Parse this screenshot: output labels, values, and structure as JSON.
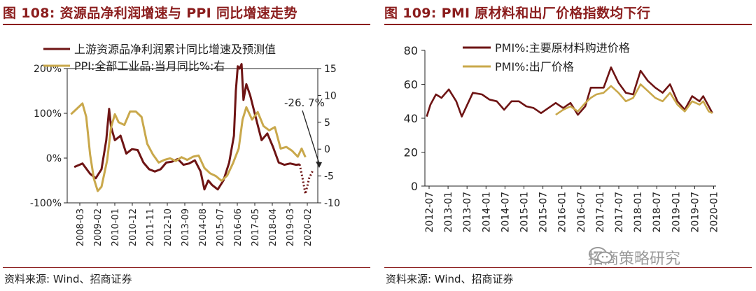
{
  "colors": {
    "dark": "#6e1414",
    "gold": "#c9a84b",
    "title": "#8b1d1d"
  },
  "left": {
    "title": "图 108: 资源品净利润增速与 PPI 同比增速走势",
    "source": "资料来源: Wind、招商证券",
    "chart_data": {
      "type": "line",
      "xtick_labels": [
        "2008-03",
        "2009-02",
        "2010-01",
        "2010-12",
        "2011-11",
        "2012-10",
        "2013-09",
        "2014-08",
        "2015-07",
        "2016-06",
        "2017-05",
        "2018-04",
        "2019-03",
        "2020-02"
      ],
      "y_left": {
        "range": [
          -100,
          200
        ],
        "ticks": [
          -100,
          0,
          100,
          200
        ],
        "tick_labels": [
          "-100%",
          "0%",
          "100%",
          "200%"
        ]
      },
      "y_right": {
        "range": [
          -10,
          15
        ],
        "ticks": [
          -10,
          -5,
          0,
          5,
          10,
          15
        ],
        "tick_labels": [
          "-10",
          "-5",
          "0",
          "5",
          "10",
          "15"
        ]
      },
      "annotation": "-26. 7%",
      "series": [
        {
          "name": "上游资源品净利润累计同比增速及预测值",
          "axis": "left",
          "color": "#6e1414",
          "x": [
            2008.17,
            2008.6,
            2009.0,
            2009.3,
            2009.6,
            2009.85,
            2010.0,
            2010.1,
            2010.3,
            2010.6,
            2010.9,
            2011.2,
            2011.5,
            2011.8,
            2012.1,
            2012.4,
            2012.7,
            2013.0,
            2013.3,
            2013.6,
            2013.9,
            2014.2,
            2014.5,
            2014.8,
            2015.0,
            2015.2,
            2015.4,
            2015.7,
            2016.0,
            2016.3,
            2016.55,
            2016.65,
            2016.75,
            2016.85,
            2016.95,
            2017.05,
            2017.2,
            2017.4,
            2017.7,
            2018.0,
            2018.3,
            2018.6,
            2018.9,
            2019.2,
            2019.5,
            2019.8,
            2020.0
          ],
          "y": [
            -20,
            -12,
            -35,
            -45,
            -25,
            40,
            110,
            70,
            40,
            50,
            10,
            20,
            18,
            -10,
            -25,
            -30,
            -25,
            -10,
            -8,
            -2,
            -15,
            -12,
            -5,
            -30,
            -70,
            -50,
            -60,
            -70,
            -50,
            -10,
            50,
            150,
            205,
            200,
            210,
            130,
            165,
            140,
            90,
            40,
            55,
            25,
            -10,
            -15,
            -12,
            -15,
            -14
          ]
        },
        {
          "name": "预测值",
          "axis": "left",
          "color": "#6e1414",
          "dotted": true,
          "x": [
            2020.0,
            2020.15,
            2020.3,
            2020.5,
            2020.7
          ],
          "y": [
            -14,
            -45,
            -80,
            -45,
            -26.7
          ]
        },
        {
          "name": "PPI:全部工业品:当月同比%:右",
          "axis": "right",
          "color": "#c9a84b",
          "x": [
            2008.0,
            2008.3,
            2008.6,
            2008.8,
            2009.0,
            2009.2,
            2009.4,
            2009.6,
            2009.9,
            2010.1,
            2010.3,
            2010.5,
            2010.8,
            2011.1,
            2011.4,
            2011.7,
            2012.0,
            2012.3,
            2012.6,
            2012.9,
            2013.2,
            2013.5,
            2013.8,
            2014.1,
            2014.4,
            2014.7,
            2015.0,
            2015.3,
            2015.6,
            2015.9,
            2016.2,
            2016.5,
            2016.8,
            2017.0,
            2017.2,
            2017.5,
            2017.8,
            2018.1,
            2018.4,
            2018.7,
            2019.0,
            2019.3,
            2019.6,
            2019.9,
            2020.1,
            2020.3
          ],
          "y": [
            6.5,
            7.5,
            8.5,
            6,
            -1,
            -5.5,
            -7.8,
            -7,
            -2,
            4,
            6.5,
            5,
            4.5,
            7,
            7,
            6,
            1,
            -1,
            -2.5,
            -2,
            -1.7,
            -2.2,
            -1.5,
            -2,
            -1.4,
            -1.2,
            -3.5,
            -4.5,
            -5,
            -5.9,
            -4.9,
            -2.6,
            0.1,
            5.5,
            7.8,
            5.5,
            6.9,
            4.3,
            3.5,
            4.1,
            0.1,
            0.4,
            -0.3,
            -1.4,
            0.1,
            -1.5
          ]
        }
      ]
    }
  },
  "right": {
    "title": "图 109: PMI 原材料和出厂价格指数均下行",
    "source": "资料来源: Wind、招商证券",
    "chart_data": {
      "type": "line",
      "xtick_labels": [
        "2012-07",
        "2013-01",
        "2013-07",
        "2014-01",
        "2014-07",
        "2015-01",
        "2015-07",
        "2016-01",
        "2016-07",
        "2017-01",
        "2017-07",
        "2018-01",
        "2018-07",
        "2019-01",
        "2019-07",
        "2020-01"
      ],
      "y": {
        "range": [
          0,
          80
        ],
        "ticks": [
          0,
          20,
          40,
          60,
          80
        ],
        "tick_labels": [
          "0",
          "20",
          "40",
          "60",
          "80"
        ]
      },
      "series": [
        {
          "name": "PMI%:主要原材料购进价格",
          "color": "#6e1414",
          "x": [
            2012.5,
            2012.6,
            2012.75,
            2012.9,
            2013.1,
            2013.3,
            2013.45,
            2013.6,
            2013.75,
            2014.0,
            2014.2,
            2014.4,
            2014.6,
            2014.8,
            2015.0,
            2015.2,
            2015.4,
            2015.6,
            2015.8,
            2016.0,
            2016.2,
            2016.4,
            2016.6,
            2016.8,
            2016.95,
            2017.1,
            2017.3,
            2017.5,
            2017.7,
            2017.9,
            2018.1,
            2018.3,
            2018.5,
            2018.7,
            2018.9,
            2019.1,
            2019.3,
            2019.5,
            2019.7,
            2019.9,
            2020.0,
            2020.15,
            2020.25
          ],
          "y": [
            41,
            48,
            54,
            52,
            57,
            50,
            41,
            48,
            55,
            54,
            51,
            50,
            45,
            50,
            50,
            47,
            46,
            43,
            46,
            49,
            46,
            49,
            42,
            47,
            58,
            58,
            58,
            70,
            61,
            55,
            54,
            68,
            62,
            58,
            55,
            60,
            50,
            45,
            53,
            50,
            53,
            47,
            43
          ]
        },
        {
          "name": "PMI%:出厂价格",
          "color": "#c9a84b",
          "x": [
            2016.0,
            2016.2,
            2016.4,
            2016.6,
            2016.8,
            2016.95,
            2017.1,
            2017.3,
            2017.5,
            2017.7,
            2017.9,
            2018.1,
            2018.3,
            2018.5,
            2018.7,
            2018.9,
            2019.1,
            2019.3,
            2019.5,
            2019.7,
            2019.9,
            2020.0,
            2020.15,
            2020.25
          ],
          "y": [
            42,
            45,
            47,
            44,
            49,
            52,
            54,
            55,
            59,
            55,
            50,
            52,
            60,
            56,
            52,
            50,
            55,
            48,
            44,
            50,
            48,
            50,
            44,
            43
          ]
        }
      ]
    }
  },
  "watermark": "招商策略研究"
}
